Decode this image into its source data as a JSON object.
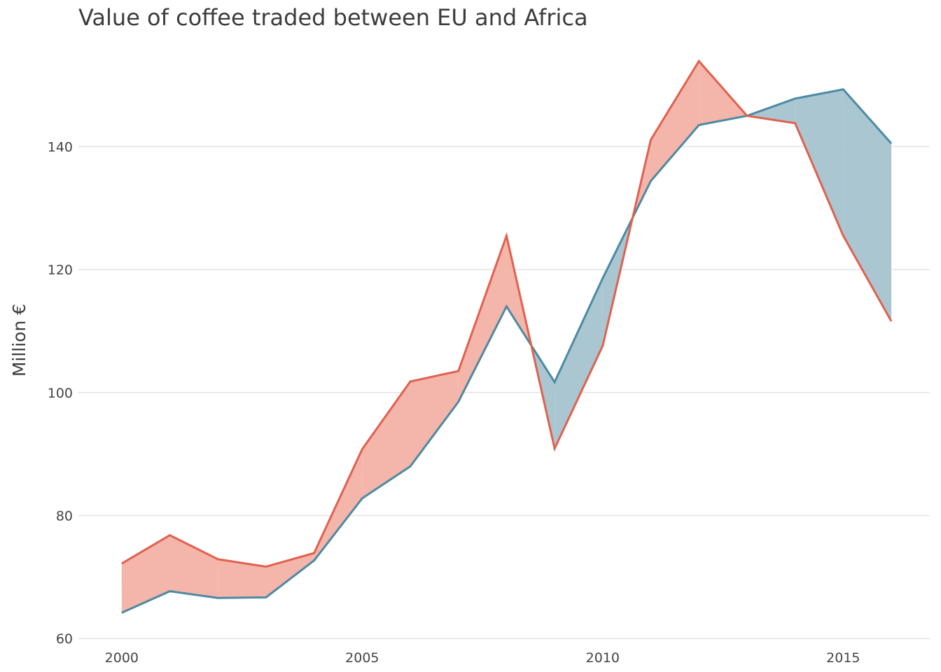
{
  "chart_data": {
    "type": "area",
    "title": "Value of coffee traded between EU and Africa",
    "xlabel": "",
    "ylabel": "Million €",
    "x": [
      2000,
      2001,
      2002,
      2003,
      2004,
      2005,
      2006,
      2007,
      2008,
      2009,
      2010,
      2011,
      2012,
      2013,
      2014,
      2015,
      2016
    ],
    "xlim": [
      1999.1,
      2016.8
    ],
    "ylim": [
      59.8,
      157
    ],
    "x_ticks": [
      2000,
      2005,
      2010,
      2015
    ],
    "y_ticks": [
      60,
      80,
      100,
      120,
      140
    ],
    "grid": "horizontal",
    "series": [
      {
        "color": "#e0614f",
        "fill_color": "#f4b5aa",
        "values": [
          72.2,
          76.8,
          72.9,
          71.7,
          73.9,
          90.8,
          101.8,
          103.5,
          125.5,
          90.9,
          107.6,
          141.1,
          153.9,
          145.0,
          143.8,
          125.5,
          111.6
        ]
      },
      {
        "color": "#4c8aa3",
        "fill_color": "#a9c6d1",
        "values": [
          64.2,
          67.7,
          66.6,
          66.7,
          72.7,
          82.8,
          88.0,
          98.5,
          114.0,
          101.7,
          118.6,
          134.4,
          143.5,
          145.0,
          147.8,
          149.3,
          140.5
        ]
      }
    ]
  }
}
